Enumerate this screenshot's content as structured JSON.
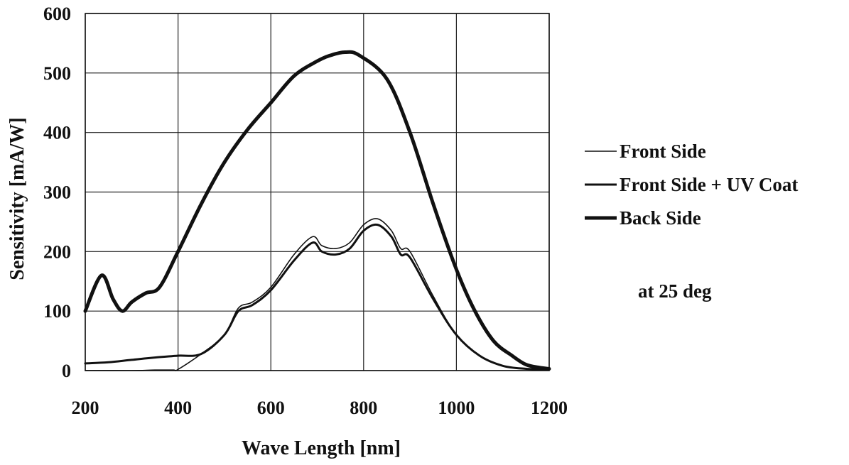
{
  "chart_data": {
    "type": "line",
    "title": "",
    "xlabel": "Wave Length [nm]",
    "ylabel": "Sensitivity [mA/W]",
    "xlim": [
      200,
      1200
    ],
    "ylim": [
      0,
      600
    ],
    "xticks": [
      200,
      400,
      600,
      800,
      1000,
      1200
    ],
    "yticks": [
      0,
      100,
      200,
      300,
      400,
      500,
      600
    ],
    "grid": true,
    "legend_position": "right",
    "annotation": "at 25 deg",
    "series": [
      {
        "name": "Front Side",
        "stroke": "thin",
        "color": "#111111",
        "points": [
          [
            200,
            0
          ],
          [
            300,
            0
          ],
          [
            350,
            1
          ],
          [
            390,
            1
          ],
          [
            400,
            2
          ],
          [
            450,
            28
          ],
          [
            500,
            60
          ],
          [
            530,
            105
          ],
          [
            560,
            115
          ],
          [
            600,
            140
          ],
          [
            650,
            195
          ],
          [
            690,
            225
          ],
          [
            710,
            210
          ],
          [
            740,
            205
          ],
          [
            770,
            215
          ],
          [
            800,
            245
          ],
          [
            830,
            255
          ],
          [
            860,
            235
          ],
          [
            880,
            205
          ],
          [
            900,
            200
          ],
          [
            950,
            125
          ],
          [
            1000,
            60
          ],
          [
            1050,
            25
          ],
          [
            1100,
            8
          ],
          [
            1150,
            3
          ],
          [
            1200,
            2
          ]
        ]
      },
      {
        "name": "Front Side + UV Coat",
        "stroke": "medium",
        "color": "#111111",
        "points": [
          [
            200,
            12
          ],
          [
            250,
            14
          ],
          [
            300,
            18
          ],
          [
            350,
            22
          ],
          [
            400,
            25
          ],
          [
            450,
            28
          ],
          [
            500,
            60
          ],
          [
            530,
            100
          ],
          [
            560,
            110
          ],
          [
            600,
            135
          ],
          [
            650,
            185
          ],
          [
            690,
            215
          ],
          [
            710,
            200
          ],
          [
            740,
            195
          ],
          [
            770,
            205
          ],
          [
            800,
            235
          ],
          [
            830,
            245
          ],
          [
            860,
            225
          ],
          [
            880,
            195
          ],
          [
            900,
            190
          ],
          [
            950,
            120
          ],
          [
            1000,
            60
          ],
          [
            1050,
            25
          ],
          [
            1100,
            8
          ],
          [
            1150,
            3
          ],
          [
            1200,
            2
          ]
        ]
      },
      {
        "name": "Back Side",
        "stroke": "thick",
        "color": "#111111",
        "points": [
          [
            200,
            100
          ],
          [
            235,
            160
          ],
          [
            260,
            120
          ],
          [
            280,
            100
          ],
          [
            300,
            115
          ],
          [
            330,
            130
          ],
          [
            360,
            140
          ],
          [
            400,
            200
          ],
          [
            450,
            280
          ],
          [
            500,
            350
          ],
          [
            550,
            405
          ],
          [
            600,
            450
          ],
          [
            650,
            495
          ],
          [
            700,
            520
          ],
          [
            730,
            530
          ],
          [
            760,
            535
          ],
          [
            790,
            530
          ],
          [
            850,
            490
          ],
          [
            900,
            400
          ],
          [
            950,
            280
          ],
          [
            1000,
            170
          ],
          [
            1040,
            100
          ],
          [
            1080,
            50
          ],
          [
            1120,
            25
          ],
          [
            1150,
            10
          ],
          [
            1180,
            5
          ],
          [
            1200,
            3
          ]
        ]
      }
    ]
  }
}
